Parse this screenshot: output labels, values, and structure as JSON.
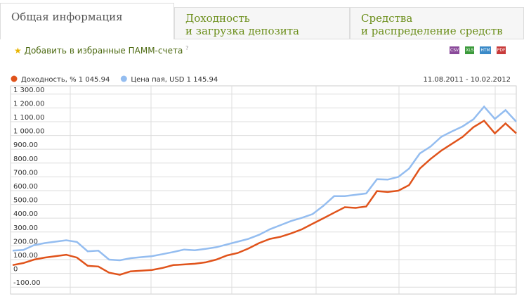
{
  "tabs": [
    {
      "lines": [
        "Общая информация"
      ]
    },
    {
      "lines": [
        "Доходность",
        "и загрузка депозита"
      ]
    },
    {
      "lines": [
        "Средства",
        "и распределение средств"
      ]
    }
  ],
  "favorite_link": "Добавить в избранные ПАММ-счета",
  "help_mark": "?",
  "export_formats": [
    "CSV",
    "XLS",
    "HTM",
    "PDF"
  ],
  "chart_data": {
    "type": "line",
    "date_range": "11.08.2011 - 10.02.2012",
    "series": [
      {
        "name": "Доходность, % 1 045.94",
        "color": "#e0531b",
        "values": [
          60,
          75,
          100,
          115,
          125,
          135,
          115,
          55,
          50,
          5,
          -10,
          15,
          20,
          25,
          40,
          60,
          65,
          70,
          80,
          100,
          130,
          148,
          180,
          220,
          250,
          265,
          290,
          320,
          360,
          400,
          440,
          480,
          475,
          485,
          597,
          590,
          600,
          640,
          760,
          830,
          890,
          940,
          990,
          1060,
          1107,
          1015,
          1087,
          1015
        ]
      },
      {
        "name": "Цена пая, USD 1 145.94",
        "color": "#94bdf0",
        "values": [
          165,
          170,
          205,
          220,
          230,
          240,
          228,
          160,
          165,
          100,
          95,
          110,
          118,
          125,
          140,
          155,
          173,
          168,
          178,
          190,
          210,
          230,
          250,
          280,
          320,
          350,
          380,
          403,
          430,
          490,
          560,
          560,
          570,
          580,
          683,
          680,
          700,
          760,
          870,
          920,
          990,
          1030,
          1066,
          1117,
          1209,
          1120,
          1184,
          1100
        ]
      }
    ],
    "ylim": [
      -150,
      1360
    ],
    "yticks": [
      {
        "value": -100,
        "label": "-100.00"
      },
      0,
      {
        "value": 100,
        "label": "100.00"
      },
      {
        "value": 200,
        "label": "200.00"
      },
      {
        "value": 300,
        "label": "300.00"
      },
      {
        "value": 400,
        "label": "400.00"
      },
      {
        "value": 500,
        "label": "500.00"
      },
      {
        "value": 600,
        "label": "600.00"
      },
      {
        "value": 700,
        "label": "700.00"
      },
      {
        "value": 800,
        "label": "800.00"
      },
      {
        "value": 900,
        "label": "900.00"
      },
      {
        "value": 1000,
        "label": "1 000.00"
      },
      {
        "value": 1100,
        "label": "1 100.00"
      },
      {
        "value": 1200,
        "label": "1 200.00"
      },
      {
        "value": 1300,
        "label": "1 300.00"
      }
    ],
    "grid": true
  }
}
